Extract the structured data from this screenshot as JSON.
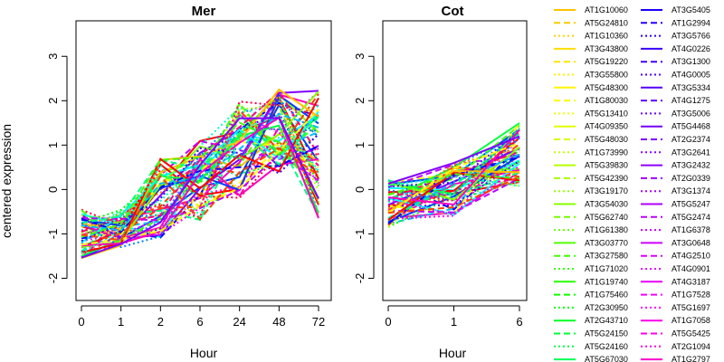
{
  "chart_data": {
    "type": "line",
    "ylabel": "centered expression",
    "ylim": [
      -2.5,
      3.8
    ],
    "yticks": [
      -2,
      -1,
      0,
      1,
      2,
      3
    ],
    "line_styles": [
      "solid",
      "dashed",
      "dotted"
    ],
    "panels": [
      {
        "title": "Mer",
        "xlabel": "Hour",
        "x": [
          "0",
          "1",
          "2",
          "6",
          "24",
          "48",
          "72"
        ]
      },
      {
        "title": "Cot",
        "xlabel": "Hour",
        "x": [
          "0",
          "1",
          "6"
        ]
      }
    ],
    "legend": {
      "placement": "right",
      "columns": [
        [
          "AT1G10060",
          "AT5G24810",
          "AT1G10360",
          "AT3G43800",
          "AT5G19220",
          "AT3G55800",
          "AT5G48300",
          "AT1G80030",
          "AT5G13410",
          "AT4G09350",
          "AT5G48030",
          "AT1G73990",
          "AT5G39830",
          "AT5G42390",
          "AT3G19170",
          "AT3G54030",
          "AT5G62740",
          "AT1G61380",
          "AT3G03770",
          "AT3G27580",
          "AT1G71020",
          "AT1G19740",
          "AT1G75460",
          "AT2G30950",
          "AT2G43710",
          "AT5G24150",
          "AT5G24160",
          "AT5G67030"
        ],
        [
          "AT3G5405",
          "AT1G2994",
          "AT3G5766",
          "AT4G0226",
          "AT3G1300",
          "AT4G0005",
          "AT3G5334",
          "AT4G1275",
          "AT3G5006",
          "AT5G4468",
          "AT2G2374",
          "AT3G2641",
          "AT3G2432",
          "AT2G0339",
          "AT3G1374",
          "AT5G5247",
          "AT5G2474",
          "AT1G6378",
          "AT3G0648",
          "AT4G2510",
          "AT4G0901",
          "AT4G3187",
          "AT1G7528",
          "AT5G1697",
          "AT1G7058",
          "AT5G5425",
          "AT2G1094",
          "AT1G2797"
        ]
      ],
      "colors": [
        [
          "#FFC400",
          "#FFCC00",
          "#FFD400",
          "#FFDD00",
          "#FFE500",
          "#FFEE00",
          "#FFF600",
          "#FAFF00",
          "#EEFF00",
          "#E0FF00",
          "#D4FF00",
          "#C6FF00",
          "#B8FF00",
          "#A8FF00",
          "#98FF00",
          "#88FF00",
          "#76FF00",
          "#66FF00",
          "#54FF00",
          "#44FF00",
          "#34FF00",
          "#22FF00",
          "#10FF00",
          "#00FF10",
          "#00FF22",
          "#00FF34",
          "#00FF46",
          "#00FF56"
        ],
        [
          "#1A00FF",
          "#2400FF",
          "#2E00FF",
          "#3800FF",
          "#4200FF",
          "#4C00FF",
          "#5600FF",
          "#6000FF",
          "#6A00FF",
          "#7400FF",
          "#7E00FF",
          "#8800FF",
          "#9200FF",
          "#9C00FF",
          "#A600FF",
          "#B000FF",
          "#BA00FF",
          "#C400FF",
          "#CE00FF",
          "#D800FF",
          "#E200FF",
          "#EC00FF",
          "#F600FF",
          "#FF00F6",
          "#FF00EC",
          "#FF00E2",
          "#FF00D8",
          "#FF00CE"
        ]
      ]
    },
    "series_palette": [
      "#FF0000",
      "#FF4000",
      "#FF8000",
      "#FFBF00",
      "#FFFF00",
      "#BFFF00",
      "#80FF00",
      "#40FF00",
      "#00FF00",
      "#00FF40",
      "#00FF80",
      "#00FFBF",
      "#00FFFF",
      "#00BFFF",
      "#0080FF",
      "#0040FF",
      "#0000FF",
      "#4000FF",
      "#8000FF",
      "#BF00FF",
      "#FF00FF",
      "#FF00BF",
      "#FF0080",
      "#FF0040"
    ],
    "mer_center": [
      -1.0,
      -0.9,
      -0.2,
      0.2,
      0.9,
      1.3,
      0.7
    ],
    "cot_center": [
      -0.3,
      0.0,
      0.8
    ]
  }
}
